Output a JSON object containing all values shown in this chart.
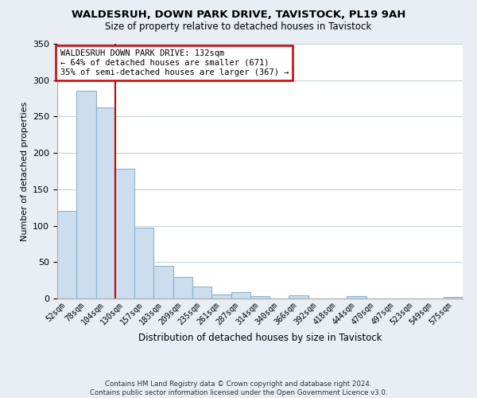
{
  "title1": "WALDESRUH, DOWN PARK DRIVE, TAVISTOCK, PL19 9AH",
  "title2": "Size of property relative to detached houses in Tavistock",
  "xlabel": "Distribution of detached houses by size in Tavistock",
  "ylabel": "Number of detached properties",
  "bin_labels": [
    "52sqm",
    "78sqm",
    "104sqm",
    "130sqm",
    "157sqm",
    "183sqm",
    "209sqm",
    "235sqm",
    "261sqm",
    "287sqm",
    "314sqm",
    "340sqm",
    "366sqm",
    "392sqm",
    "418sqm",
    "444sqm",
    "470sqm",
    "497sqm",
    "523sqm",
    "549sqm",
    "575sqm"
  ],
  "bar_heights": [
    120,
    285,
    263,
    178,
    97,
    45,
    29,
    16,
    6,
    9,
    3,
    0,
    4,
    0,
    0,
    3,
    0,
    0,
    0,
    0,
    2
  ],
  "bar_color": "#ccdded",
  "bar_edge_color": "#8ab4cc",
  "vline_x": 3,
  "vline_color": "#cc0000",
  "annotation_line1": "WALDESRUH DOWN PARK DRIVE: 132sqm",
  "annotation_line2": "← 64% of detached houses are smaller (671)",
  "annotation_line3": "35% of semi-detached houses are larger (367) →",
  "annotation_box_color": "#cc0000",
  "ylim": [
    0,
    350
  ],
  "yticks": [
    0,
    50,
    100,
    150,
    200,
    250,
    300,
    350
  ],
  "footer1": "Contains HM Land Registry data © Crown copyright and database right 2024.",
  "footer2": "Contains public sector information licensed under the Open Government Licence v3.0.",
  "bg_color": "#e8eef4",
  "plot_bg_color": "#ffffff",
  "grid_color": "#c8d4de"
}
